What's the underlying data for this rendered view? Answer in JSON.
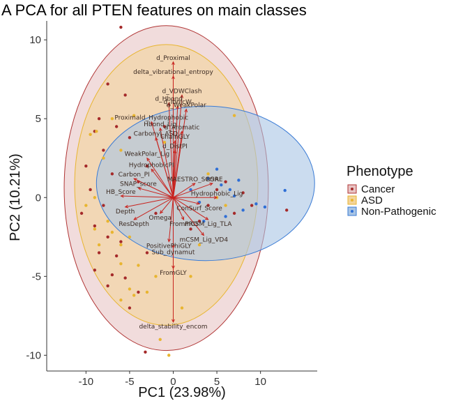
{
  "chart_data": {
    "type": "scatter",
    "title": "A PCA for all PTEN features on main classes",
    "xlabel": "PC1 (23.98%)",
    "ylabel": "PC2 (10.21%)",
    "xlim": [
      -14.5,
      16.5
    ],
    "ylim": [
      -11,
      11.2
    ],
    "xticks": [
      -10,
      -5,
      0,
      5,
      10
    ],
    "yticks": [
      -10,
      -5,
      0,
      5,
      10
    ],
    "grid": false,
    "legend": {
      "title": "Phenotype",
      "placement": "right",
      "entries": [
        "Cancer",
        "ASD",
        "Non-Pathogenic"
      ]
    },
    "colors": {
      "Cancer": "#a52a2a",
      "ASD": "#e8b530",
      "Non-Pathogenic": "#2f6fd6",
      "arrow": "#c8231e"
    },
    "ellipses": [
      {
        "group": "Cancer",
        "center": [
          -0.8,
          0.6
        ],
        "semi_axes": [
          11.7,
          10.3
        ],
        "fill": "#e8c4c4",
        "stroke": "#b03434"
      },
      {
        "group": "ASD",
        "center": [
          -0.8,
          0.8
        ],
        "semi_axes": [
          10.5,
          8.9
        ],
        "fill": "#f3d49b",
        "stroke": "#e8b530"
      },
      {
        "group": "Non-Pathogenic",
        "center": [
          3.7,
          0.9
        ],
        "semi_axes": [
          12.5,
          4.9
        ],
        "fill": "#a8c4e4",
        "stroke": "#3a7bd5"
      }
    ],
    "series": [
      {
        "name": "Cancer",
        "points": [
          [
            -6,
            10.8
          ],
          [
            -7.5,
            7.2
          ],
          [
            -5.5,
            6.5
          ],
          [
            -8.5,
            5
          ],
          [
            -9,
            4.2
          ],
          [
            -6.5,
            4.5
          ],
          [
            -5,
            3.8
          ],
          [
            -8,
            3
          ],
          [
            -10,
            2
          ],
          [
            -7,
            1.5
          ],
          [
            -9.5,
            0.5
          ],
          [
            -8,
            -0.5
          ],
          [
            -10.5,
            -1
          ],
          [
            -9,
            -1.8
          ],
          [
            -7.5,
            -2.5
          ],
          [
            -6,
            -2.8
          ],
          [
            -8.5,
            -3.5
          ],
          [
            -6.5,
            -3.7
          ],
          [
            -9,
            -4.6
          ],
          [
            -7,
            -4.9
          ],
          [
            -5.5,
            -5.1
          ],
          [
            -7.5,
            -5.6
          ],
          [
            -3.2,
            -9.8
          ],
          [
            -5,
            -7
          ],
          [
            -4,
            -6
          ],
          [
            -3,
            -3.5
          ],
          [
            2,
            -2
          ],
          [
            3,
            -1.5
          ],
          [
            4,
            -0.5
          ],
          [
            5,
            0.5
          ],
          [
            6,
            1
          ],
          [
            7,
            -1
          ],
          [
            8,
            0.3
          ],
          [
            -2,
            -1
          ],
          [
            -3,
            2
          ],
          [
            13,
            -0.8
          ],
          [
            9,
            -0.5
          ],
          [
            -1,
            4.5
          ],
          [
            -4,
            1
          ]
        ]
      },
      {
        "name": "ASD",
        "points": [
          [
            -8.8,
            4.2
          ],
          [
            -9.5,
            4
          ],
          [
            -7,
            5
          ],
          [
            -4.5,
            5.2
          ],
          [
            -6,
            3
          ],
          [
            -8,
            2.5
          ],
          [
            -9,
            0
          ],
          [
            -10,
            -0.5
          ],
          [
            -7.5,
            -1.5
          ],
          [
            -9,
            -2
          ],
          [
            -7,
            -2.2
          ],
          [
            -5,
            -2.5
          ],
          [
            -6,
            -3
          ],
          [
            -8.5,
            -3
          ],
          [
            -6,
            -4.2
          ],
          [
            -4,
            -4.3
          ],
          [
            -5,
            -5.8
          ],
          [
            -6,
            -6.5
          ],
          [
            -4.5,
            -6.2
          ],
          [
            -3,
            -6
          ],
          [
            -0.5,
            -10
          ],
          [
            -1.5,
            -9
          ],
          [
            1,
            -7
          ],
          [
            -2,
            -5
          ],
          [
            7,
            5.2
          ],
          [
            5,
            0
          ],
          [
            4,
            1.5
          ],
          [
            6,
            -0.5
          ],
          [
            -1,
            3.5
          ],
          [
            3,
            -3
          ],
          [
            2,
            -5
          ]
        ]
      },
      {
        "name": "Non-Pathogenic",
        "points": [
          [
            12.8,
            0.45
          ],
          [
            10.5,
            -0.6
          ],
          [
            9.5,
            -0.4
          ],
          [
            7.5,
            1.1
          ],
          [
            6.5,
            0.5
          ],
          [
            5.5,
            0.8
          ],
          [
            4,
            1.2
          ],
          [
            3,
            -0.3
          ],
          [
            6,
            -1.2
          ],
          [
            8,
            -0.8
          ],
          [
            2,
            0.5
          ],
          [
            5,
            1.8
          ],
          [
            7,
            0.1
          ],
          [
            3.5,
            -1.5
          ]
        ]
      }
    ],
    "loadings": [
      {
        "label": "d_Proximal",
        "end": [
          0,
          8.6
        ]
      },
      {
        "label": "delta_vibrational_entropy",
        "end": [
          0,
          7.7
        ]
      },
      {
        "label": "d_VDWClash",
        "end": [
          1,
          6.5
        ]
      },
      {
        "label": "d_Hbond",
        "end": [
          -0.5,
          6
        ]
      },
      {
        "label": "d_IonicW",
        "end": [
          0.5,
          5.8
        ]
      },
      {
        "label": "d_WeakPolar",
        "end": [
          1.5,
          5.6
        ]
      },
      {
        "label": "Proximald_Hydrophobic",
        "end": [
          -2.5,
          4.8
        ]
      },
      {
        "label": "Hbond_Lig",
        "end": [
          -1.5,
          4.4
        ]
      },
      {
        "label": "d_Aromatic",
        "end": [
          1,
          4.2
        ]
      },
      {
        "label": "Carbonyl_ASD",
        "end": [
          -2,
          3.8
        ]
      },
      {
        "label": "ChainGLY",
        "end": [
          0.2,
          3.6
        ]
      },
      {
        "label": "d_DistPI",
        "end": [
          0.2,
          3
        ]
      },
      {
        "label": "WeakPolar_Lig",
        "end": [
          -3,
          2.5
        ]
      },
      {
        "label": "HydrophobicPI",
        "end": [
          -2.5,
          1.8
        ]
      },
      {
        "label": "Carbon_PI",
        "end": [
          -4.5,
          1.2
        ]
      },
      {
        "label": "SNAP_score",
        "end": [
          -4,
          0.6
        ]
      },
      {
        "label": "MAESTRO_SCORE",
        "end": [
          2.5,
          0.9
        ]
      },
      {
        "label": "RSA",
        "end": [
          4.5,
          0.9
        ]
      },
      {
        "label": "Hydrophobic_Lig",
        "end": [
          5,
          0
        ]
      },
      {
        "label": "ConSurf_Score",
        "end": [
          3,
          -0.4
        ]
      },
      {
        "label": "HB_Score",
        "end": [
          -6,
          0.1
        ]
      },
      {
        "label": "Depth",
        "end": [
          -5.5,
          -0.6
        ]
      },
      {
        "label": "Omega",
        "end": [
          -1.5,
          -1
        ]
      },
      {
        "label": "ResDepth",
        "end": [
          -4.5,
          -1.4
        ]
      },
      {
        "label": "FromPRO",
        "end": [
          1.2,
          -1.4
        ]
      },
      {
        "label": "mCSM_Lig_TLA",
        "end": [
          4,
          -1.4
        ]
      },
      {
        "label": "mCSM_Lig_VD4",
        "end": [
          3.5,
          -2.4
        ]
      },
      {
        "label": "PositivePhiGLY",
        "end": [
          -0.5,
          -2.8
        ]
      },
      {
        "label": "Sub_dynamut",
        "end": [
          0,
          -3.2
        ]
      },
      {
        "label": "FromGLY",
        "end": [
          0,
          -4.5
        ]
      },
      {
        "label": "delta_stability_encom",
        "end": [
          0,
          -7.9
        ]
      }
    ]
  }
}
